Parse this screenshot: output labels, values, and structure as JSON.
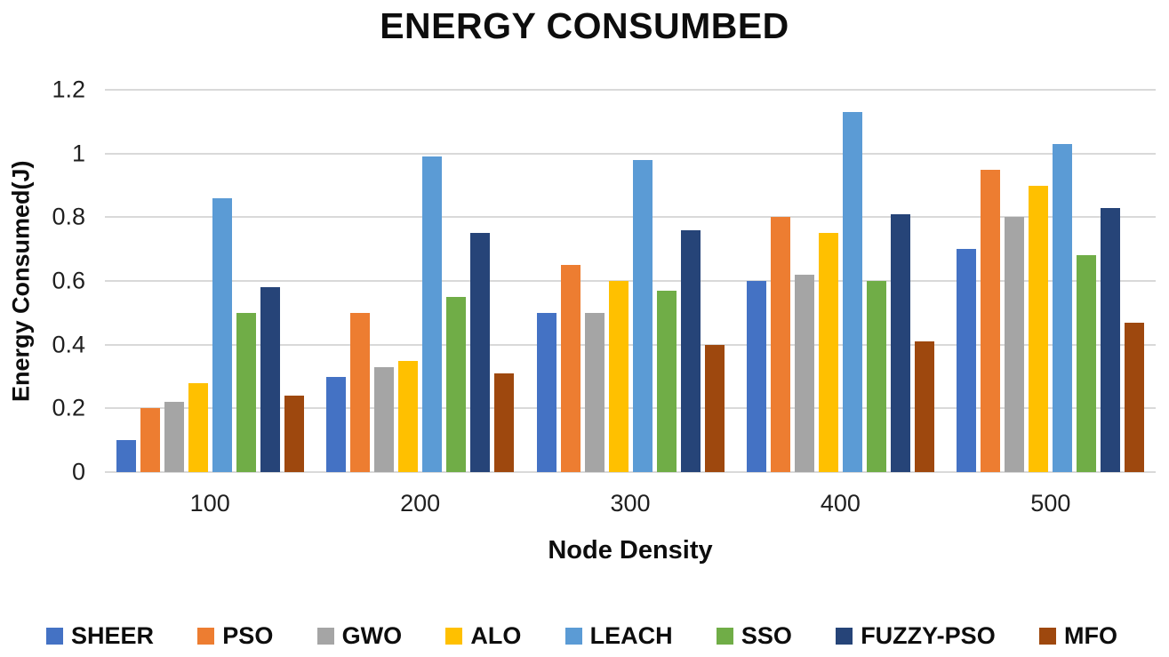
{
  "chart_data": {
    "type": "bar",
    "title": "ENERGY CONSUMBED",
    "xlabel": "Node Density",
    "ylabel": "Energy Consumed(J)",
    "categories": [
      "100",
      "200",
      "300",
      "400",
      "500"
    ],
    "series": [
      {
        "name": "SHEER",
        "color": "#4472C4",
        "values": [
          0.1,
          0.3,
          0.5,
          0.6,
          0.7
        ]
      },
      {
        "name": "PSO",
        "color": "#ED7D31",
        "values": [
          0.2,
          0.5,
          0.65,
          0.8,
          0.95
        ]
      },
      {
        "name": "GWO",
        "color": "#A5A5A5",
        "values": [
          0.22,
          0.33,
          0.5,
          0.62,
          0.8
        ]
      },
      {
        "name": "ALO",
        "color": "#FFC000",
        "values": [
          0.28,
          0.35,
          0.6,
          0.75,
          0.9
        ]
      },
      {
        "name": "LEACH",
        "color": "#5B9BD5",
        "values": [
          0.86,
          0.99,
          0.98,
          1.13,
          1.03
        ]
      },
      {
        "name": "SSO",
        "color": "#70AD47",
        "values": [
          0.5,
          0.55,
          0.57,
          0.6,
          0.68
        ]
      },
      {
        "name": "FUZZY-PSO",
        "color": "#264478",
        "values": [
          0.58,
          0.75,
          0.76,
          0.81,
          0.83
        ]
      },
      {
        "name": "MFO",
        "color": "#9E480E",
        "values": [
          0.24,
          0.31,
          0.4,
          0.41,
          0.47
        ]
      }
    ],
    "ylim": [
      0,
      1.2
    ],
    "yticks": [
      {
        "label": "1.2",
        "value": 1.2
      },
      {
        "label": "1",
        "value": 1.0
      },
      {
        "label": "0.8",
        "value": 0.8
      },
      {
        "label": "0.6",
        "value": 0.6
      },
      {
        "label": "0.4",
        "value": 0.4
      },
      {
        "label": "0.2",
        "value": 0.2
      },
      {
        "label": "0",
        "value": 0.0
      }
    ],
    "grid": true,
    "legend_position": "bottom"
  },
  "colors": {
    "gridline": "#D9D9D9",
    "tick_text": "#1F1F1F",
    "title_text": "#0D0D0D",
    "background": "#FFFFFF"
  }
}
